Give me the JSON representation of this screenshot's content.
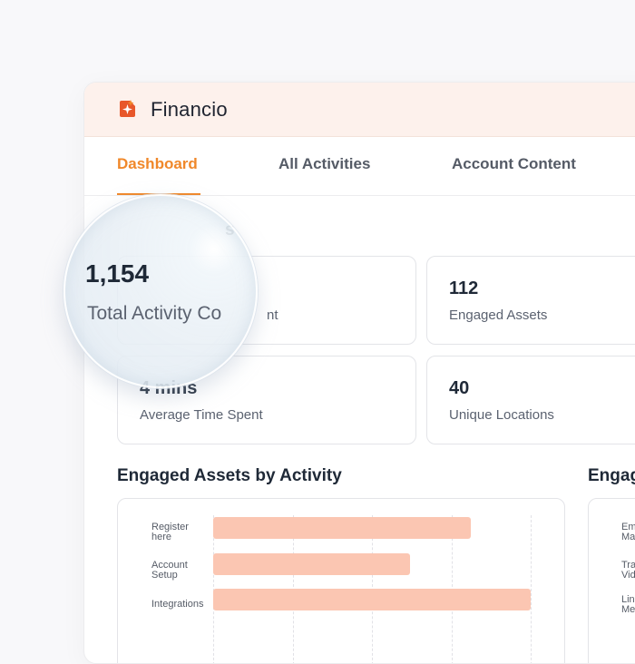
{
  "app": {
    "brand": "Financio"
  },
  "tabs": [
    {
      "label": "Dashboard",
      "active": true
    },
    {
      "label": "All Activities",
      "active": false
    },
    {
      "label": "Account Content",
      "active": false
    }
  ],
  "overview": {
    "title_fragment": "s",
    "stats": [
      {
        "value": "1,154",
        "label": "Total Activity Count",
        "visible_label_tail": "nt"
      },
      {
        "value": "112",
        "label": "Engaged Assets"
      },
      {
        "value": "4 mins",
        "label": "Average Time Spent"
      },
      {
        "value": "40",
        "label": "Unique Locations"
      }
    ]
  },
  "chart_left": {
    "title": "Engaged Assets by Activity"
  },
  "chart_right": {
    "title": "Engag",
    "labels": [
      {
        "line1": "Em",
        "line2": "Ma"
      },
      {
        "line1": "Tra",
        "line2": "Vid"
      },
      {
        "line1": "Lin",
        "line2": "Me"
      }
    ]
  },
  "chart_data": {
    "type": "bar",
    "orientation": "horizontal",
    "title": "Engaged Assets by Activity",
    "categories": [
      "Register here",
      "Account Setup",
      "Integrations"
    ],
    "values": [
      81,
      62,
      100
    ],
    "xlim": [
      0,
      100
    ],
    "grid": true,
    "color": "#fbc6b2"
  },
  "colors": {
    "accent": "#f0882a",
    "brand_icon": "#e8572a",
    "topbar_bg": "#fdf1ec",
    "bar_fill": "#fbc6b2"
  },
  "icons": {
    "logo": "sparkle-logo-icon"
  }
}
